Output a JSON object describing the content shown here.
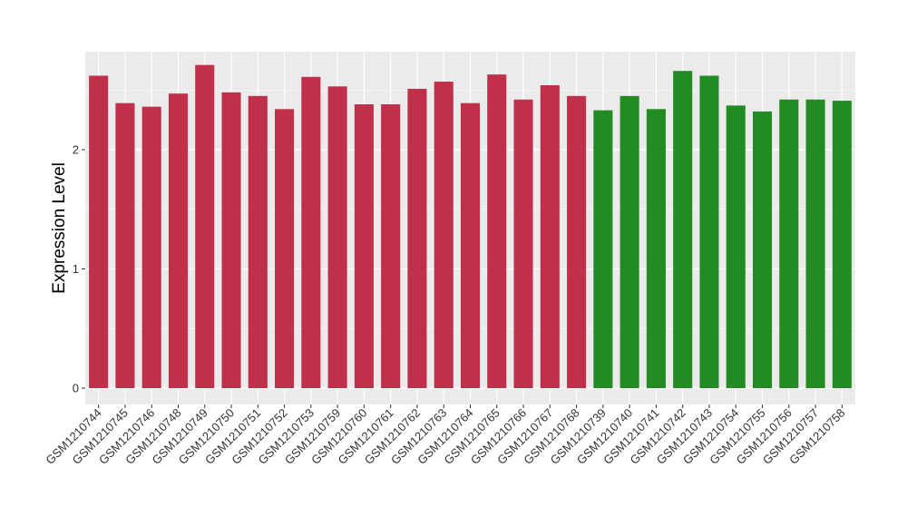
{
  "chart_data": {
    "type": "bar",
    "title": "",
    "xlabel": "",
    "ylabel": "Expression Level",
    "ylim": [
      0,
      2.8
    ],
    "yticks": [
      0,
      1,
      2
    ],
    "grid": true,
    "categories": [
      "GSM1210744",
      "GSM1210745",
      "GSM1210746",
      "GSM1210748",
      "GSM1210749",
      "GSM1210750",
      "GSM1210751",
      "GSM1210752",
      "GSM1210753",
      "GSM1210759",
      "GSM1210760",
      "GSM1210761",
      "GSM1210762",
      "GSM1210763",
      "GSM1210764",
      "GSM1210765",
      "GSM1210766",
      "GSM1210767",
      "GSM1210768",
      "GSM1210739",
      "GSM1210740",
      "GSM1210741",
      "GSM1210742",
      "GSM1210743",
      "GSM1210754",
      "GSM1210755",
      "GSM1210756",
      "GSM1210757",
      "GSM1210758"
    ],
    "values": [
      2.62,
      2.39,
      2.36,
      2.47,
      2.71,
      2.48,
      2.45,
      2.34,
      2.61,
      2.53,
      2.38,
      2.38,
      2.51,
      2.57,
      2.39,
      2.63,
      2.42,
      2.54,
      2.45,
      2.33,
      2.45,
      2.34,
      2.66,
      2.62,
      2.37,
      2.32,
      2.42,
      2.42,
      2.41
    ],
    "colors": [
      "#c0304a",
      "#c0304a",
      "#c0304a",
      "#c0304a",
      "#c0304a",
      "#c0304a",
      "#c0304a",
      "#c0304a",
      "#c0304a",
      "#c0304a",
      "#c0304a",
      "#c0304a",
      "#c0304a",
      "#c0304a",
      "#c0304a",
      "#c0304a",
      "#c0304a",
      "#c0304a",
      "#c0304a",
      "#228b22",
      "#228b22",
      "#228b22",
      "#228b22",
      "#228b22",
      "#228b22",
      "#228b22",
      "#228b22",
      "#228b22",
      "#228b22"
    ],
    "panel_background": "#ebebeb",
    "grid_color": "#ffffff"
  }
}
